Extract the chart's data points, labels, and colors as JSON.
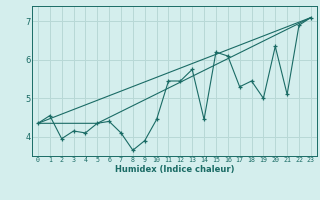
{
  "title": "",
  "xlabel": "Humidex (Indice chaleur)",
  "background_color": "#d4eeed",
  "grid_color": "#b8d8d6",
  "line_color": "#1a6b65",
  "marker_color": "#1a6b65",
  "xlim": [
    -0.5,
    23.5
  ],
  "ylim": [
    3.5,
    7.4
  ],
  "yticks": [
    4,
    5,
    6,
    7
  ],
  "xticks": [
    0,
    1,
    2,
    3,
    4,
    5,
    6,
    7,
    8,
    9,
    10,
    11,
    12,
    13,
    14,
    15,
    16,
    17,
    18,
    19,
    20,
    21,
    22,
    23
  ],
  "series1_x": [
    0,
    1,
    2,
    3,
    4,
    5,
    6,
    7,
    8,
    9,
    10,
    11,
    12,
    13,
    14,
    15,
    16,
    17,
    18,
    19,
    20,
    21,
    22,
    23
  ],
  "series1_y": [
    4.35,
    4.55,
    3.95,
    4.15,
    4.1,
    4.35,
    4.4,
    4.1,
    3.65,
    3.9,
    4.45,
    5.45,
    5.45,
    5.75,
    4.45,
    6.2,
    6.1,
    5.3,
    5.45,
    5.0,
    6.35,
    5.1,
    6.9,
    7.1
  ],
  "series2_x": [
    0,
    23
  ],
  "series2_y": [
    4.35,
    7.1
  ],
  "series3_x": [
    0,
    5,
    23
  ],
  "series3_y": [
    4.35,
    4.35,
    7.1
  ]
}
